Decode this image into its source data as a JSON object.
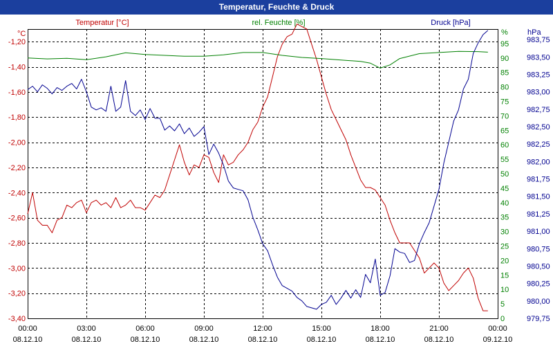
{
  "window": {
    "title": "Temperatur, Feuchte & Druck"
  },
  "colors": {
    "temperature": "#c00000",
    "humidity": "#008000",
    "pressure": "#000090",
    "titlebar": "#1b3f9e"
  },
  "chart_data": {
    "type": "line",
    "title": "Temperatur, Feuchte & Druck",
    "grid": true,
    "x_labels": [
      {
        "time": "00:00",
        "date": "08.12.10"
      },
      {
        "time": "03:00",
        "date": "08.12.10"
      },
      {
        "time": "06:00",
        "date": "08.12.10"
      },
      {
        "time": "09:00",
        "date": "08.12.10"
      },
      {
        "time": "12:00",
        "date": "08.12.10"
      },
      {
        "time": "15:00",
        "date": "08.12.10"
      },
      {
        "time": "18:00",
        "date": "08.12.10"
      },
      {
        "time": "21:00",
        "date": "08.12.10"
      },
      {
        "time": "00:00",
        "date": "09.12.10"
      }
    ],
    "x_range_hours": [
      0,
      24
    ],
    "axes": {
      "temperature": {
        "title": "Temperatur [°C]",
        "unit": "°C",
        "range": [
          -3.4,
          -1.1
        ],
        "ticks": [
          "-1,20",
          "-1,40",
          "-1,60",
          "-1,80",
          "-2,00",
          "-2,20",
          "-2,40",
          "-2,60",
          "-2,80",
          "-3,00",
          "-3,20",
          "-3,40"
        ],
        "tick_values": [
          -1.2,
          -1.4,
          -1.6,
          -1.8,
          -2.0,
          -2.2,
          -2.4,
          -2.6,
          -2.8,
          -3.0,
          -3.2,
          -3.4
        ]
      },
      "humidity": {
        "title": "rel. Feuchte [%]",
        "unit": "%",
        "range": [
          0,
          100
        ],
        "ticks": [
          "95",
          "90",
          "85",
          "80",
          "75",
          "70",
          "65",
          "60",
          "55",
          "50",
          "45",
          "40",
          "35",
          "30",
          "25",
          "20",
          "15",
          "10",
          "5",
          "0"
        ],
        "tick_values": [
          95,
          90,
          85,
          80,
          75,
          70,
          65,
          60,
          55,
          50,
          45,
          40,
          35,
          30,
          25,
          20,
          15,
          10,
          5,
          0
        ]
      },
      "pressure": {
        "title": "Druck [hPa]",
        "unit": "hPa",
        "range": [
          979.75,
          983.9
        ],
        "ticks": [
          "983,75",
          "983,50",
          "983,25",
          "983,00",
          "982,75",
          "982,50",
          "982,25",
          "982,00",
          "981,75",
          "981,50",
          "981,25",
          "981,00",
          "980,75",
          "980,50",
          "980,25",
          "980,00",
          "979,75"
        ],
        "tick_values": [
          983.75,
          983.5,
          983.25,
          983.0,
          982.75,
          982.5,
          982.25,
          982.0,
          981.75,
          981.5,
          981.25,
          981.0,
          980.75,
          980.5,
          980.25,
          980.0,
          979.75
        ]
      }
    },
    "series": [
      {
        "name": "Temperatur [°C]",
        "axis": "temperature",
        "color": "#c00000",
        "points": [
          [
            0,
            -2.57
          ],
          [
            0.25,
            -2.4
          ],
          [
            0.5,
            -2.62
          ],
          [
            0.75,
            -2.66
          ],
          [
            1.0,
            -2.66
          ],
          [
            1.25,
            -2.72
          ],
          [
            1.5,
            -2.62
          ],
          [
            1.75,
            -2.6
          ],
          [
            2.0,
            -2.5
          ],
          [
            2.25,
            -2.52
          ],
          [
            2.5,
            -2.48
          ],
          [
            2.75,
            -2.46
          ],
          [
            3.0,
            -2.56
          ],
          [
            3.25,
            -2.48
          ],
          [
            3.5,
            -2.46
          ],
          [
            3.75,
            -2.5
          ],
          [
            4.0,
            -2.48
          ],
          [
            4.25,
            -2.52
          ],
          [
            4.5,
            -2.44
          ],
          [
            4.75,
            -2.52
          ],
          [
            5.0,
            -2.5
          ],
          [
            5.25,
            -2.46
          ],
          [
            5.5,
            -2.52
          ],
          [
            5.75,
            -2.52
          ],
          [
            6.0,
            -2.54
          ],
          [
            6.25,
            -2.48
          ],
          [
            6.5,
            -2.42
          ],
          [
            6.75,
            -2.44
          ],
          [
            7.0,
            -2.38
          ],
          [
            7.25,
            -2.26
          ],
          [
            7.5,
            -2.14
          ],
          [
            7.75,
            -2.02
          ],
          [
            8.0,
            -2.16
          ],
          [
            8.25,
            -2.26
          ],
          [
            8.5,
            -2.18
          ],
          [
            8.75,
            -2.2
          ],
          [
            9.0,
            -2.1
          ],
          [
            9.25,
            -2.12
          ],
          [
            9.5,
            -2.24
          ],
          [
            9.75,
            -2.32
          ],
          [
            10.0,
            -2.1
          ],
          [
            10.25,
            -2.18
          ],
          [
            10.5,
            -2.16
          ],
          [
            10.75,
            -2.1
          ],
          [
            11.0,
            -2.06
          ],
          [
            11.25,
            -2.0
          ],
          [
            11.5,
            -1.9
          ],
          [
            11.75,
            -1.84
          ],
          [
            12.0,
            -1.72
          ],
          [
            12.25,
            -1.64
          ],
          [
            12.5,
            -1.48
          ],
          [
            12.75,
            -1.32
          ],
          [
            13.0,
            -1.22
          ],
          [
            13.25,
            -1.16
          ],
          [
            13.5,
            -1.14
          ],
          [
            13.75,
            -1.06
          ],
          [
            14.0,
            -1.08
          ],
          [
            14.25,
            -1.1
          ],
          [
            14.5,
            -1.22
          ],
          [
            14.75,
            -1.34
          ],
          [
            15.0,
            -1.48
          ],
          [
            15.25,
            -1.62
          ],
          [
            15.5,
            -1.74
          ],
          [
            15.75,
            -1.82
          ],
          [
            16.0,
            -1.9
          ],
          [
            16.25,
            -1.98
          ],
          [
            16.5,
            -2.1
          ],
          [
            16.75,
            -2.2
          ],
          [
            17.0,
            -2.3
          ],
          [
            17.25,
            -2.36
          ],
          [
            17.5,
            -2.36
          ],
          [
            17.75,
            -2.38
          ],
          [
            18.0,
            -2.44
          ],
          [
            18.25,
            -2.5
          ],
          [
            18.5,
            -2.62
          ],
          [
            18.75,
            -2.72
          ],
          [
            19.0,
            -2.8
          ],
          [
            19.25,
            -2.8
          ],
          [
            19.5,
            -2.8
          ],
          [
            19.75,
            -2.86
          ],
          [
            20.0,
            -2.92
          ],
          [
            20.25,
            -3.04
          ],
          [
            20.5,
            -3.0
          ],
          [
            20.75,
            -2.96
          ],
          [
            21.0,
            -3.0
          ],
          [
            21.25,
            -3.12
          ],
          [
            21.5,
            -3.18
          ],
          [
            21.75,
            -3.14
          ],
          [
            22.0,
            -3.1
          ],
          [
            22.25,
            -3.04
          ],
          [
            22.5,
            -3.0
          ],
          [
            22.75,
            -3.08
          ],
          [
            23.0,
            -3.24
          ],
          [
            23.25,
            -3.34
          ],
          [
            23.5,
            -3.34
          ]
        ]
      },
      {
        "name": "rel. Feuchte [%]",
        "axis": "humidity",
        "color": "#008000",
        "points": [
          [
            0,
            90
          ],
          [
            1,
            89.7
          ],
          [
            2,
            89.9
          ],
          [
            3,
            89.4
          ],
          [
            4,
            90.4
          ],
          [
            5,
            91.8
          ],
          [
            6,
            91.2
          ],
          [
            7,
            90.9
          ],
          [
            8,
            90.6
          ],
          [
            9,
            90.6
          ],
          [
            10,
            91.1
          ],
          [
            11,
            91.9
          ],
          [
            12,
            91.9
          ],
          [
            13,
            90.9
          ],
          [
            14,
            90.2
          ],
          [
            15,
            89.8
          ],
          [
            16,
            89.3
          ],
          [
            17,
            88.8
          ],
          [
            17.5,
            88.2
          ],
          [
            18,
            86.5
          ],
          [
            18.5,
            87.6
          ],
          [
            19,
            89.8
          ],
          [
            20,
            91.5
          ],
          [
            21,
            91.9
          ],
          [
            22,
            92.3
          ],
          [
            23,
            92.2
          ],
          [
            23.5,
            92.0
          ]
        ]
      },
      {
        "name": "Druck [hPa]",
        "axis": "pressure",
        "color": "#000090",
        "points": [
          [
            0,
            983.03
          ],
          [
            0.25,
            983.08
          ],
          [
            0.5,
            983.0
          ],
          [
            0.75,
            983.1
          ],
          [
            1.0,
            983.05
          ],
          [
            1.25,
            982.97
          ],
          [
            1.5,
            983.06
          ],
          [
            1.75,
            983.02
          ],
          [
            2.0,
            983.08
          ],
          [
            2.25,
            983.12
          ],
          [
            2.5,
            983.04
          ],
          [
            2.75,
            983.18
          ],
          [
            3.0,
            983.0
          ],
          [
            3.25,
            982.78
          ],
          [
            3.5,
            982.74
          ],
          [
            3.75,
            982.77
          ],
          [
            4.0,
            982.72
          ],
          [
            4.25,
            983.08
          ],
          [
            4.5,
            982.72
          ],
          [
            4.75,
            982.78
          ],
          [
            5.0,
            983.16
          ],
          [
            5.25,
            982.72
          ],
          [
            5.5,
            982.66
          ],
          [
            5.75,
            982.74
          ],
          [
            6.0,
            982.6
          ],
          [
            6.25,
            982.76
          ],
          [
            6.5,
            982.62
          ],
          [
            6.75,
            982.62
          ],
          [
            7.0,
            982.45
          ],
          [
            7.25,
            982.51
          ],
          [
            7.5,
            982.44
          ],
          [
            7.75,
            982.54
          ],
          [
            8.0,
            982.4
          ],
          [
            8.25,
            982.48
          ],
          [
            8.5,
            982.36
          ],
          [
            8.75,
            982.42
          ],
          [
            9.0,
            982.5
          ],
          [
            9.25,
            982.1
          ],
          [
            9.5,
            982.25
          ],
          [
            9.75,
            982.12
          ],
          [
            10.0,
            981.95
          ],
          [
            10.25,
            981.72
          ],
          [
            10.5,
            981.62
          ],
          [
            10.75,
            981.6
          ],
          [
            11.0,
            981.58
          ],
          [
            11.25,
            981.45
          ],
          [
            11.5,
            981.2
          ],
          [
            11.75,
            981.02
          ],
          [
            12.0,
            980.82
          ],
          [
            12.25,
            980.72
          ],
          [
            12.5,
            980.52
          ],
          [
            12.75,
            980.34
          ],
          [
            13.0,
            980.22
          ],
          [
            13.25,
            980.18
          ],
          [
            13.5,
            980.14
          ],
          [
            13.75,
            980.05
          ],
          [
            14.0,
            980.0
          ],
          [
            14.25,
            979.92
          ],
          [
            14.5,
            979.9
          ],
          [
            14.75,
            979.88
          ],
          [
            15.0,
            979.95
          ],
          [
            15.25,
            979.98
          ],
          [
            15.5,
            980.08
          ],
          [
            15.75,
            979.95
          ],
          [
            16.0,
            980.04
          ],
          [
            16.25,
            980.15
          ],
          [
            16.5,
            980.04
          ],
          [
            16.75,
            980.16
          ],
          [
            17.0,
            980.05
          ],
          [
            17.25,
            980.38
          ],
          [
            17.5,
            980.26
          ],
          [
            17.75,
            980.6
          ],
          [
            18.0,
            980.08
          ],
          [
            18.25,
            980.12
          ],
          [
            18.5,
            980.36
          ],
          [
            18.75,
            980.75
          ],
          [
            19.0,
            980.7
          ],
          [
            19.25,
            980.68
          ],
          [
            19.5,
            980.55
          ],
          [
            19.75,
            980.58
          ],
          [
            20.0,
            980.82
          ],
          [
            20.25,
            980.98
          ],
          [
            20.5,
            981.12
          ],
          [
            20.75,
            981.36
          ],
          [
            21.0,
            981.6
          ],
          [
            21.25,
            981.98
          ],
          [
            21.5,
            982.28
          ],
          [
            21.75,
            982.58
          ],
          [
            22.0,
            982.74
          ],
          [
            22.25,
            983.04
          ],
          [
            22.5,
            983.18
          ],
          [
            22.75,
            983.55
          ],
          [
            23.0,
            983.7
          ],
          [
            23.25,
            983.82
          ],
          [
            23.5,
            983.88
          ]
        ]
      }
    ]
  }
}
